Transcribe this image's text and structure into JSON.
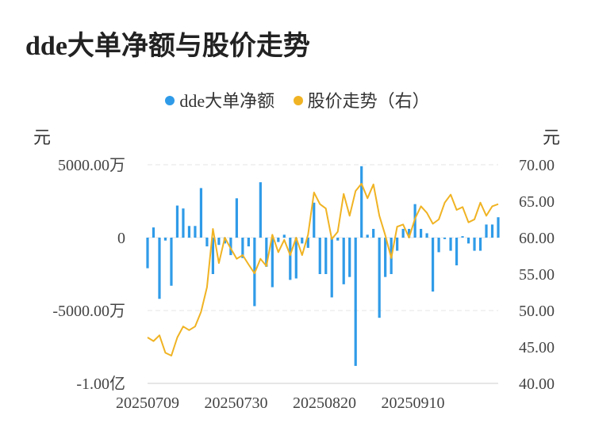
{
  "title": "dde大单净额与股价走势",
  "legend": [
    {
      "label": "dde大单净额",
      "color": "#2f9be8"
    },
    {
      "label": "股价走势（右）",
      "color": "#f0b323"
    }
  ],
  "left_unit": "元",
  "right_unit": "元",
  "chart_data": {
    "type": "bar+line",
    "left_axis": {
      "ticks": [
        {
          "label": "5000.00万",
          "value": 50000000
        },
        {
          "label": "0",
          "value": 0
        },
        {
          "label": "-5000.00万",
          "value": -50000000
        },
        {
          "label": "-1.00亿",
          "value": -100000000
        }
      ],
      "range": [
        -100000000,
        50000000
      ]
    },
    "right_axis": {
      "ticks": [
        "70.00",
        "65.00",
        "60.00",
        "55.00",
        "50.00",
        "45.00",
        "40.00"
      ],
      "range": [
        40,
        70
      ]
    },
    "x_tick_labels": [
      "20250709",
      "20250730",
      "20250820",
      "20250910"
    ],
    "grid": true,
    "series": [
      {
        "name": "dde大单净额",
        "type": "bar",
        "values": [
          -21000000,
          7000000,
          -42000000,
          -2000000,
          -33000000,
          22000000,
          20000000,
          8000000,
          8000000,
          34000000,
          -6000000,
          -25000000,
          -5000000,
          -4000000,
          -12000000,
          27000000,
          -14000000,
          -6000000,
          -47000000,
          38000000,
          -20000000,
          -34000000,
          -3000000,
          2000000,
          -29000000,
          -28000000,
          -4000000,
          -7000000,
          24000000,
          -25000000,
          -25000000,
          -41000000,
          -2000000,
          -32000000,
          -27000000,
          -88000000,
          49000000,
          2000000,
          6000000,
          -55000000,
          -27000000,
          -25000000,
          -9000000,
          6000000,
          6000000,
          23000000,
          6000000,
          3000000,
          -37000000,
          -10000000,
          -1000000,
          -9000000,
          -19000000,
          1000000,
          -4000000,
          -9000000,
          -9000000,
          9000000,
          9000000,
          14000000
        ]
      },
      {
        "name": "股价走势（右）",
        "type": "line",
        "values": [
          46.3,
          45.8,
          46.6,
          44.2,
          43.8,
          46.3,
          47.8,
          47.3,
          47.8,
          49.8,
          53.2,
          61.2,
          56.5,
          60.0,
          58.5,
          57.1,
          57.6,
          56.3,
          55.1,
          57.1,
          56.1,
          60.4,
          58.0,
          59.7,
          57.6,
          60.0,
          57.6,
          60.4,
          66.2,
          64.6,
          64.0,
          59.8,
          60.8,
          66.0,
          63.0,
          66.4,
          67.4,
          65.4,
          67.3,
          63.0,
          60.3,
          57.2,
          61.5,
          61.8,
          60.0,
          62.6,
          64.3,
          63.4,
          61.9,
          62.5,
          64.8,
          65.9,
          63.8,
          64.2,
          62.1,
          62.5,
          64.8,
          63.0,
          64.3,
          64.6
        ]
      }
    ]
  }
}
